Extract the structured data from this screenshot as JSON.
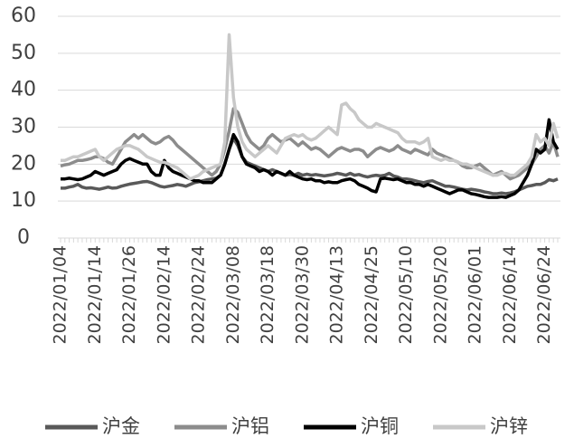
{
  "chart_data": {
    "type": "line",
    "categories": [
      "2022/01/04",
      null,
      null,
      null,
      null,
      null,
      null,
      null,
      "2022/01/14",
      null,
      null,
      null,
      null,
      null,
      null,
      null,
      "2022/01/26",
      null,
      null,
      null,
      null,
      null,
      null,
      null,
      "2022/02/14",
      null,
      null,
      null,
      null,
      null,
      null,
      null,
      "2022/02/24",
      null,
      null,
      null,
      null,
      null,
      null,
      null,
      "2022/03/08",
      null,
      null,
      null,
      null,
      null,
      null,
      null,
      "2022/03/18",
      null,
      null,
      null,
      null,
      null,
      null,
      null,
      "2022/03/30",
      null,
      null,
      null,
      null,
      null,
      null,
      null,
      "2022/04/13",
      null,
      null,
      null,
      null,
      null,
      null,
      null,
      "2022/04/25",
      null,
      null,
      null,
      null,
      null,
      null,
      null,
      "2022/05/10",
      null,
      null,
      null,
      null,
      null,
      null,
      null,
      "2022/05/20",
      null,
      null,
      null,
      null,
      null,
      null,
      null,
      "2022/06/01",
      null,
      null,
      null,
      null,
      null,
      null,
      null,
      "2022/06/14",
      null,
      null,
      null,
      null,
      null,
      null,
      null,
      "2022/06/24",
      null,
      null,
      null
    ],
    "series": [
      {
        "name": "沪金",
        "color": "#595959",
        "values": [
          13.5,
          13.5,
          13.8,
          14,
          14.5,
          13.8,
          13.5,
          13.6,
          13.4,
          13.2,
          13.5,
          13.8,
          13.5,
          13.6,
          14,
          14.3,
          14.6,
          14.8,
          15,
          15.2,
          15.3,
          15,
          14.5,
          14,
          13.8,
          14,
          14.2,
          14.5,
          14.3,
          14,
          14.5,
          15,
          15.2,
          15.5,
          15.8,
          16,
          16.2,
          17,
          20,
          24,
          27,
          25,
          22,
          20.5,
          20,
          19.5,
          19,
          18.5,
          18,
          18.5,
          18,
          17.5,
          17,
          17.2,
          17,
          17.5,
          17,
          17.3,
          17,
          17.2,
          17,
          16.8,
          17,
          17.2,
          17.5,
          17.3,
          17,
          17.5,
          17,
          17.2,
          16.8,
          16.5,
          16.8,
          17,
          16.8,
          17,
          17.5,
          16.8,
          16.5,
          16,
          16,
          15.8,
          15.5,
          15.2,
          15,
          15.3,
          15.5,
          15,
          14.5,
          14,
          14,
          13.8,
          13.5,
          13.2,
          13,
          13.2,
          13,
          12.8,
          12.5,
          12.3,
          12,
          12,
          12.2,
          12,
          12.2,
          12.5,
          13,
          13.5,
          14,
          14.2,
          14.5,
          14.5,
          15,
          15.8,
          15.5,
          16
        ]
      },
      {
        "name": "沪铝",
        "color": "#8c8c8c",
        "values": [
          19.5,
          19.8,
          20,
          20.5,
          21,
          21,
          21.2,
          21.5,
          22,
          22,
          21.5,
          20.5,
          20,
          22,
          24,
          26,
          27,
          28,
          27,
          28,
          27,
          26,
          25.5,
          26,
          27,
          27.5,
          26.5,
          25,
          24,
          23,
          22,
          21,
          20,
          19,
          18,
          17,
          18,
          20,
          24,
          29,
          35,
          34,
          31,
          28,
          26,
          25,
          24,
          25,
          27,
          28,
          27,
          26,
          26.5,
          27,
          26,
          25,
          26,
          25,
          24,
          24.5,
          24,
          23,
          22,
          23,
          24,
          24.5,
          24,
          23.5,
          24,
          24,
          23.5,
          22,
          23,
          24,
          24.5,
          24,
          23.5,
          24,
          25,
          24,
          23.5,
          23,
          24,
          23.5,
          23,
          22.5,
          24,
          23,
          22.5,
          22,
          21.5,
          21,
          20.5,
          19.5,
          19,
          19,
          19.5,
          20,
          19,
          18,
          17,
          17.5,
          18,
          17,
          16,
          16.5,
          17,
          18,
          19,
          20,
          22,
          24,
          25,
          23,
          26,
          22
        ]
      },
      {
        "name": "沪铜",
        "color": "#000000",
        "values": [
          16,
          16,
          16.2,
          16,
          15.8,
          16,
          16.5,
          17,
          18,
          17.5,
          17,
          17.5,
          18,
          18.5,
          20,
          21,
          21.5,
          21,
          20.5,
          20,
          20,
          18,
          17,
          17,
          21,
          19,
          18,
          17.5,
          17,
          16.5,
          16,
          15.5,
          15.5,
          15,
          15,
          15,
          16,
          17,
          20,
          24,
          28,
          26,
          22,
          20,
          19.5,
          19,
          18,
          18.5,
          18,
          17,
          18,
          17.5,
          17,
          18,
          17,
          16.5,
          16,
          15.8,
          16,
          15.5,
          15.5,
          15,
          15.2,
          15,
          15,
          15.5,
          15.8,
          16,
          15.5,
          14.5,
          14,
          13.5,
          12.8,
          12.5,
          16,
          16.2,
          16,
          15.8,
          16,
          15.5,
          15,
          15,
          14.5,
          14.5,
          14,
          14.5,
          14,
          13.5,
          13,
          12.5,
          12,
          12.5,
          13,
          13,
          12.5,
          12,
          11.8,
          11.5,
          11.2,
          11,
          11,
          11,
          11.2,
          11,
          11.5,
          12,
          13,
          15,
          17,
          20,
          24,
          23,
          24,
          32,
          26,
          24
        ]
      },
      {
        "name": "沪锌",
        "color": "#c8c8c8",
        "values": [
          21,
          21,
          21.5,
          22,
          22,
          22.5,
          23,
          23.5,
          24,
          22,
          21,
          22,
          23,
          24,
          24.5,
          25,
          25,
          24.5,
          24,
          23,
          22,
          21.5,
          21,
          20.5,
          20.5,
          20,
          19.5,
          19,
          18,
          17,
          16,
          16.5,
          17,
          18,
          18.5,
          19,
          19.5,
          20,
          26,
          55,
          38,
          30,
          26,
          24,
          23,
          22,
          23,
          24,
          25,
          24,
          23,
          25,
          27,
          27.5,
          28,
          27.5,
          28,
          27,
          26.5,
          27,
          28,
          29,
          30,
          29,
          28,
          36,
          36.5,
          35,
          34,
          32,
          31,
          30,
          30,
          31,
          30.5,
          30,
          29.5,
          29,
          28.5,
          27,
          26,
          26,
          26,
          25.5,
          26,
          27,
          22,
          21.5,
          21,
          21.5,
          21,
          21,
          20.5,
          20,
          20,
          19.5,
          19,
          18.5,
          18,
          17.5,
          17,
          17,
          17.5,
          17.5,
          17,
          17,
          18,
          19,
          20,
          22,
          28,
          26,
          27,
          25,
          31,
          27
        ]
      }
    ],
    "ylim": [
      0,
      60
    ],
    "yticks": [
      0,
      10,
      20,
      30,
      40,
      50,
      60
    ],
    "grid": true,
    "legend": "bottom"
  }
}
